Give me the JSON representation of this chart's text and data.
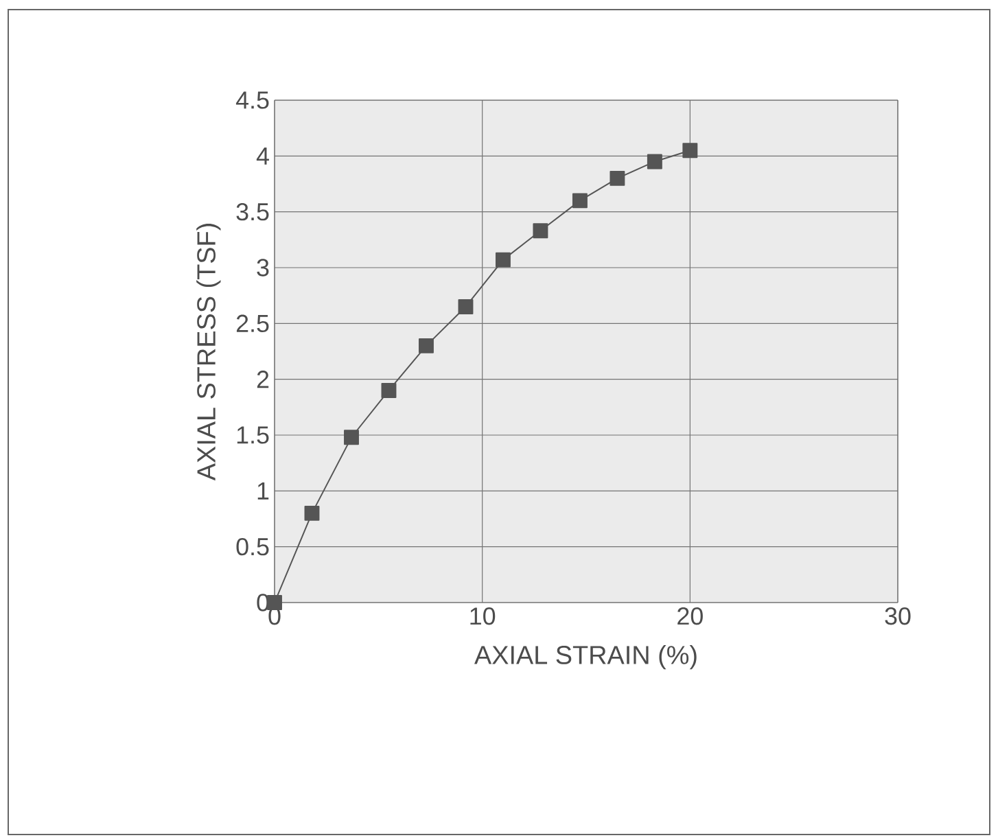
{
  "chart_data": {
    "type": "line",
    "xlabel": "AXIAL STRAIN (%)",
    "ylabel": "AXIAL STRESS (TSF)",
    "x": [
      0,
      1.8,
      3.7,
      5.5,
      7.3,
      9.2,
      11,
      12.8,
      14.7,
      16.5,
      18.3,
      20
    ],
    "series": [
      {
        "color": "#555555",
        "values": [
          0,
          0.8,
          1.48,
          1.9,
          2.3,
          2.65,
          3.07,
          3.33,
          3.6,
          3.8,
          3.95,
          4.05
        ]
      }
    ],
    "xlim": [
      0,
      30
    ],
    "xticks": [
      0,
      10,
      20,
      30
    ],
    "ylim": [
      0,
      4.5
    ],
    "yticks": [
      0,
      0.5,
      1,
      1.5,
      2,
      2.5,
      3,
      3.5,
      4,
      4.5
    ],
    "grid": true,
    "marker": "square",
    "line_style": "solid"
  }
}
